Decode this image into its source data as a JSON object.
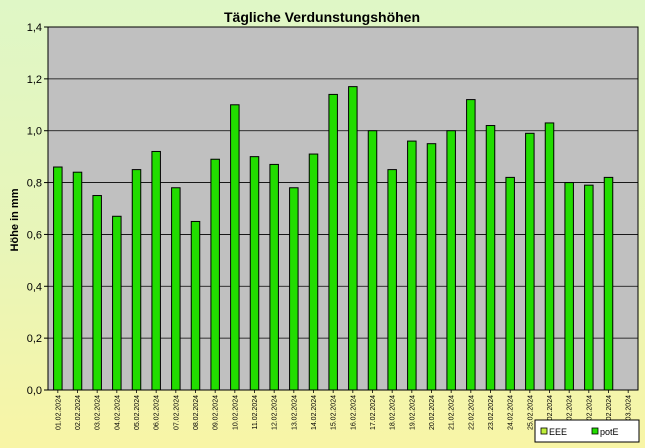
{
  "chart_data": {
    "type": "bar",
    "title": "Tägliche Verdunstungshöhen",
    "xlabel": "",
    "ylabel": "Höhe in mm",
    "ylim": [
      0,
      1.4
    ],
    "yticks": [
      "0,0",
      "0,2",
      "0,4",
      "0,6",
      "0,8",
      "1,0",
      "1,2",
      "1,4"
    ],
    "grid": true,
    "legend_position": "bottom-right",
    "categories": [
      "01.02.2024",
      "02.02.2024",
      "03.02.2024",
      "04.02.2024",
      "05.02.2024",
      "06.02.2024",
      "07.02.2024",
      "08.02.2024",
      "09.02.2024",
      "10.02.2024",
      "11.02.2024",
      "12.02.2024",
      "13.02.2024",
      "14.02.2024",
      "15.02.2024",
      "16.02.2024",
      "17.02.2024",
      "18.02.2024",
      "19.02.2024",
      "20.02.2024",
      "21.02.2024",
      "22.02.2024",
      "23.02.2024",
      "24.02.2024",
      "25.02.2024",
      "26.02.2024",
      "27.02.2024",
      "28.02.2024",
      "29.02.2024",
      "01.03.2024"
    ],
    "series": [
      {
        "name": "EEE",
        "color": "#bfee3b",
        "values": [
          null,
          null,
          null,
          null,
          null,
          null,
          null,
          null,
          null,
          null,
          null,
          null,
          null,
          null,
          null,
          null,
          null,
          null,
          null,
          null,
          null,
          null,
          null,
          null,
          null,
          null,
          null,
          null,
          null,
          null
        ]
      },
      {
        "name": "potE",
        "color": "#22dd00",
        "values": [
          0.86,
          0.84,
          0.75,
          0.67,
          0.85,
          0.92,
          0.78,
          0.65,
          0.89,
          1.1,
          0.9,
          0.87,
          0.78,
          0.91,
          1.14,
          1.17,
          1.0,
          0.85,
          0.96,
          0.95,
          1.0,
          1.12,
          1.02,
          0.82,
          0.99,
          1.03,
          0.8,
          0.79,
          0.82,
          null
        ]
      }
    ]
  },
  "colors": {
    "plot_area": "#c0c0c0",
    "gridline": "#000000",
    "bar_stroke": "#000000"
  }
}
